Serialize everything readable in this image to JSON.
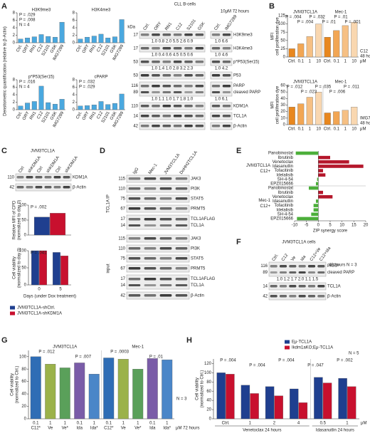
{
  "figure": {
    "A": {
      "letter": "A",
      "ylabel": "Densitometric quantification (relative to β-Actin)",
      "charts": [
        {
          "type": "bar",
          "title": "H3K9me3",
          "categories": [
            "Ctrl.",
            "ORY",
            "RN1",
            "C12",
            "S2101",
            "GSK",
            "IMG7289"
          ],
          "values": [
            1,
            1.3,
            1.6,
            2.2,
            1.7,
            1.5,
            5.5
          ],
          "color": "#4aa8df",
          "ylim": [
            0,
            8
          ],
          "yticks": [
            0,
            2,
            4,
            6,
            8
          ],
          "annotations": [
            "P = .029",
            "P = .008",
            "N = 4"
          ]
        },
        {
          "type": "bar",
          "title": "H3K4me3",
          "categories": [
            "Ctrl.",
            "ORY",
            "RN1",
            "C12",
            "S2101",
            "GSK",
            "IMG7289"
          ],
          "values": [
            1,
            1.5,
            1.8,
            2.3,
            1.3,
            1.6,
            6.2
          ],
          "color": "#4aa8df",
          "ylim": [
            0,
            8
          ],
          "yticks": [
            0,
            2,
            4,
            6,
            8
          ]
        },
        {
          "type": "bar",
          "title": "p*P53(Ser15)",
          "categories": [
            "Ctrl.",
            "ORY",
            "RN1",
            "C12",
            "S2101",
            "GSK",
            "IMG7289"
          ],
          "values": [
            1,
            1.8,
            2.2,
            6.3,
            1.9,
            1.5,
            2.8
          ],
          "color": "#4aa8df",
          "ylim": [
            0,
            8
          ],
          "yticks": [
            0,
            2,
            4,
            6,
            8
          ],
          "annotations": [
            "P = .016",
            "N = 4"
          ]
        },
        {
          "type": "bar",
          "title": "cPARP",
          "categories": [
            "Ctrl.",
            "ORY",
            "RN1",
            "C12",
            "S2101",
            "GSK",
            "IMG7289"
          ],
          "values": [
            1,
            1.1,
            1.3,
            2.2,
            1.4,
            1.7,
            4.2
          ],
          "color": "#4aa8df",
          "ylim": [
            0,
            8
          ],
          "yticks": [
            0,
            2,
            4,
            6,
            8
          ],
          "annotations": [
            "P = .032",
            "P = .029"
          ]
        }
      ],
      "blot": {
        "title": "CLL B-cells",
        "condition": "10μM 72 hours",
        "kda_label": "kDa",
        "lanes": [
          "Ctrl.",
          "ORY",
          "RN1",
          "C12",
          "S2101",
          "GSK"
        ],
        "lanes2": [
          "Ctrl.",
          "IMG7289"
        ],
        "rows": [
          {
            "kda": "17",
            "protein": "H3K9me3",
            "values": "1.0 0.8 2.0 5.5 2.6 0.9",
            "values2": "1.0 6.6"
          },
          {
            "kda": "17",
            "protein": "H3K4me3",
            "values": "1.0 0.4 0.6 4.5 0.5 0.6",
            "values2": "1.0 4.6"
          },
          {
            "kda": "53",
            "protein": "p*P53(Ser15)",
            "values": "1.0 1.4 1.0 2.8 3.2 2.3",
            "values2": "1.0 4.2"
          },
          {
            "kda": "53",
            "protein": "P53"
          },
          {
            "kda": "116",
            "kda2": "89",
            "protein": "PARP",
            "protein2": "cleaved PARP",
            "values": "1.0 1.1 1.0 1.7 1.8 1.0",
            "values2": "1.0 6.1"
          },
          {
            "kda": "110",
            "protein": "KDM1A"
          },
          {
            "kda": "14",
            "protein": "TCL1A"
          },
          {
            "kda": "42",
            "protein": "β-Actin"
          }
        ]
      }
    },
    "B": {
      "letter": "B",
      "charts": [
        {
          "type": "bar",
          "ylabel": [
            "MFI",
            "cell proliferation dye"
          ],
          "groups": [
            "JVM3TCL1A",
            "Mec-1"
          ],
          "categories": [
            "Ctrl.",
            "0.1",
            "1",
            "10",
            "Ctrl.",
            "0.1",
            "1",
            "10"
          ],
          "unit": "μM",
          "values": [
            25,
            40,
            62,
            100,
            60,
            80,
            95,
            105
          ],
          "colors": [
            "#e8871e",
            "#f2a654",
            "#f6c084",
            "#f9d7b0",
            "#e8871e",
            "#f2a654",
            "#f6c084",
            "#f9d7b0"
          ],
          "ylim": [
            0,
            125
          ],
          "yticks": [
            0,
            25,
            50,
            75,
            100,
            125
          ],
          "annotations": [
            "P = .004",
            "P = .004",
            "P = .032",
            "P = .01",
            "P = .01",
            "P = .001"
          ],
          "notes": [
            "C12",
            "48 hours"
          ]
        },
        {
          "type": "bar",
          "ylabel": [
            "MFI",
            "cell proliferation dye"
          ],
          "groups": [
            "JVM3TCL1A",
            "Mec-1"
          ],
          "categories": [
            "Ctrl.",
            "0.1",
            "1",
            "10",
            "Ctrl.",
            "0.1",
            "1",
            "10"
          ],
          "unit": "μM",
          "values": [
            27,
            32,
            42,
            50,
            18,
            20,
            22,
            27
          ],
          "colors": [
            "#e8871e",
            "#f2a654",
            "#f6c084",
            "#f9d7b0",
            "#e8871e",
            "#f2a654",
            "#f6c084",
            "#f9d7b0"
          ],
          "ylim": [
            0,
            60
          ],
          "yticks": [
            0,
            10,
            20,
            30,
            40,
            50,
            60
          ],
          "annotations": [
            "P = .012",
            "P = .023",
            "P = .035",
            "P = .006",
            "P = .011"
          ],
          "notes": [
            "IMG7289",
            "48 hours"
          ]
        }
      ]
    },
    "C": {
      "letter": "C",
      "blot": {
        "title": "JVM3TCL1A",
        "lanes": [
          "Ctrl",
          "shKDM1A",
          "Ctrl",
          "shKDM1A",
          "Ctrl",
          "shKDM1A"
        ],
        "rows": [
          {
            "kda": "110",
            "protein": "KDM1A"
          },
          {
            "kda": "42",
            "protein": "β-Actin"
          }
        ]
      },
      "charts": [
        {
          "type": "bar",
          "ylabel": [
            "Relative MFI of CPD",
            "(normalized to day 0)"
          ],
          "categories": [
            null
          ],
          "series": [
            {
              "color": "#1f3f8f",
              "values": [
                60
              ]
            },
            {
              "color": "#c8102e",
              "values": [
                73
              ]
            }
          ],
          "ylim": [
            0,
            100
          ],
          "yticks": [
            0,
            50,
            100
          ],
          "annotations": [
            "P = .002"
          ]
        },
        {
          "type": "bar",
          "ylabel": [
            "Cell viability",
            "(normalized to day 0)"
          ],
          "xlabel": "Days (under Dox treatment)",
          "categories": [
            "0",
            "5"
          ],
          "series": [
            {
              "name": "JVM3TCL1A-shCtrl.",
              "color": "#1f3f8f",
              "values": [
                100,
                95
              ]
            },
            {
              "name": "JVM3TCL1A-shKDM1A",
              "color": "#c8102e",
              "values": [
                100,
                85
              ]
            }
          ],
          "ylim": [
            0,
            100
          ],
          "yticks": [
            0,
            50,
            100
          ],
          "annotations": [
            "P = .041"
          ]
        }
      ]
    },
    "D": {
      "letter": "D",
      "lanes": [
        "IgG",
        "Mec-1",
        "JVM3TCL1A",
        "DoHH2TCL1A"
      ],
      "sections": [
        {
          "label": "TCL1A IP",
          "rows": [
            {
              "kda": "115",
              "protein": "JAK3"
            },
            {
              "kda": "110",
              "protein": "PI3K"
            },
            {
              "kda": "75",
              "protein": "STAT5"
            },
            {
              "kda": "67",
              "protein": "PRMT5"
            },
            {
              "kda": "17",
              "kda2": "14",
              "protein": "TCL1AFLAG",
              "protein2": "TCL1A"
            }
          ]
        },
        {
          "label": "input",
          "rows": [
            {
              "kda": "115",
              "protein": "JAK3"
            },
            {
              "kda": "110",
              "protein": "PI3K"
            },
            {
              "kda": "75",
              "protein": "STAT5"
            },
            {
              "kda": "67",
              "protein": "PRMT5"
            },
            {
              "kda": "17",
              "kda2": "14",
              "protein": "TCL1AFLAG",
              "protein2": "TCL1A"
            },
            {
              "kda": "42",
              "protein": "β-Actin"
            }
          ]
        }
      ]
    },
    "E": {
      "letter": "E",
      "chart": {
        "type": "hbar",
        "xlabel": "ZIP synergy score",
        "xlim": [
          -10,
          20
        ],
        "xticks": [
          -10,
          -5,
          0,
          5,
          10,
          15,
          20
        ],
        "positive_color": "#b5172b",
        "negative_color": "#4caf3a",
        "groups": [
          {
            "label": "JVM3TCL1A",
            "sublabel": "C12+",
            "categories": [
              "Panobinostat",
              "Ibrutinib",
              "Venetoclax",
              "Idasanutlin",
              "Tofacitinib",
              "Idelalisib",
              "SH-4-54",
              "EPZ015666"
            ],
            "values": [
              -9.5,
              5,
              13,
              19,
              2,
              3,
              -0.5,
              -1
            ]
          },
          {
            "label": "Mec-1",
            "sublabel": "C12+",
            "categories": [
              "Panobinostat",
              "Ibrutinib",
              "Venetoclax",
              "Idasanutlin",
              "Tofacitinib",
              "Idelalisib",
              "SH-4-54",
              "EPZ015666"
            ],
            "values": [
              -4,
              2,
              6,
              -1,
              -2,
              -2,
              -3,
              -9
            ]
          }
        ]
      }
    },
    "F": {
      "letter": "F",
      "title": "JVM3TCL1A cells",
      "note": "48 hours N = 3",
      "lanes": [
        "Ctrl.",
        "C12",
        "Ve",
        "Ida",
        "C12+Ve",
        "C12+Ida"
      ],
      "rows": [
        {
          "kda": "116",
          "kda2": "89",
          "protein": "PARP",
          "protein2": "cleaved PARP",
          "values": "1.0 1.2 1.7 2.0 1.1 1.5"
        },
        {
          "kda": "14",
          "protein": "TCL1A"
        },
        {
          "kda": "42",
          "protein": "β-Actin"
        }
      ]
    },
    "G": {
      "letter": "G",
      "chart": {
        "type": "bar",
        "ylabel": [
          "Cell viability",
          "(normalized to Ctrl.)"
        ],
        "groups": [
          "JVM3TCL1A",
          "Mec-1"
        ],
        "doses": [
          "0.1",
          "1",
          "1",
          "0.1",
          "1",
          "0.1",
          "1",
          "1",
          "0.1",
          "1"
        ],
        "categories": [
          "C12*",
          "Ve",
          "Ve*",
          "Ida",
          "Ida*",
          "C12*",
          "Ve",
          "Ve*",
          "Ida",
          "Ida*"
        ],
        "unit": "μM 72 hours",
        "values": [
          100,
          88,
          82,
          90,
          72,
          98,
          96,
          80,
          97,
          95
        ],
        "colors": [
          "#2f6db5",
          "#9bb24a",
          "#5aa05a",
          "#7a5ca8",
          "#4a86c8",
          "#2f6db5",
          "#9bb24a",
          "#5aa05a",
          "#7a5ca8",
          "#4a86c8"
        ],
        "ylim": [
          0,
          110
        ],
        "yticks": [
          0,
          20,
          40,
          60,
          80,
          100
        ],
        "annotations": [
          "P = .012",
          "P = .007",
          "P = .0003",
          "P = .01"
        ],
        "notes": [
          "N = 3"
        ]
      }
    },
    "H": {
      "letter": "H",
      "chart": {
        "type": "bar",
        "ylabel": [
          "Cell viability",
          "(normalized to Ctrl.)"
        ],
        "categories": [
          "Ctrl.",
          "1",
          "2",
          "4",
          "0.5",
          "1"
        ],
        "groups": [
          "Venetoclax 24 hours",
          "Idasanutlin 24 hours"
        ],
        "group_sizes": [
          4,
          2
        ],
        "unit": "μM",
        "series": [
          {
            "name": "Eμ-TCL1A",
            "color": "#1f3f8f",
            "values": [
              100,
              73,
              70,
              65,
              90,
              88
            ]
          },
          {
            "name": "Ikdm1aKO;Eμ-TCL1A",
            "color": "#c8102e",
            "values": [
              97,
              55,
              50,
              35,
              78,
              70
            ]
          }
        ],
        "ylim": [
          0,
          130
        ],
        "yticks": [
          0,
          20,
          40,
          60,
          80,
          100,
          120
        ],
        "annotations": [
          "P = .004",
          "P = .004",
          "P = .004",
          "P = .047",
          "P = .002"
        ],
        "notes": [
          "N = 5"
        ]
      }
    }
  }
}
